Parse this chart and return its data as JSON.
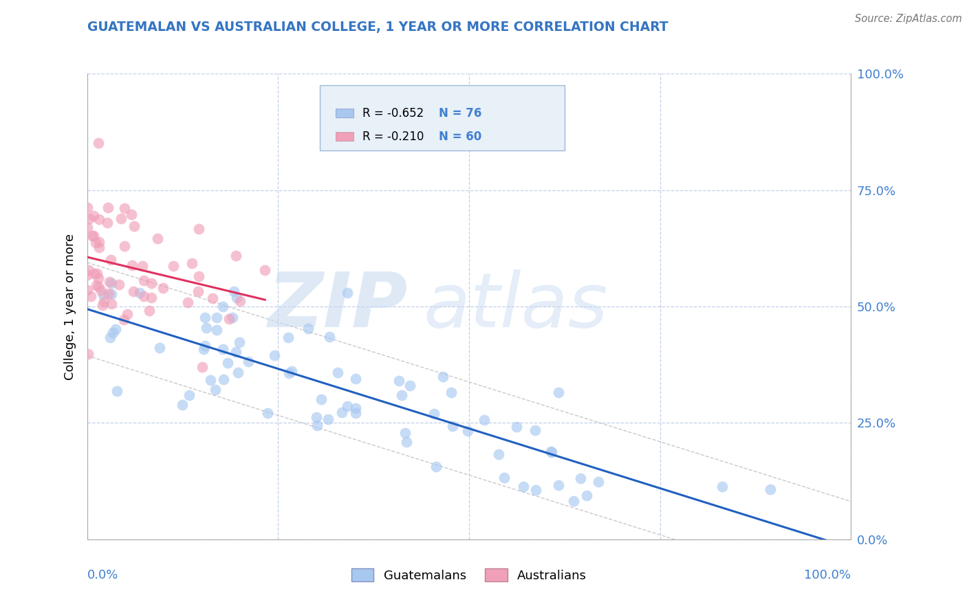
{
  "title": "GUATEMALAN VS AUSTRALIAN COLLEGE, 1 YEAR OR MORE CORRELATION CHART",
  "source": "Source: ZipAtlas.com",
  "ylabel": "College, 1 year or more",
  "watermark_zip": "ZIP",
  "watermark_atlas": "atlas",
  "legend_guatemalans": "Guatemalans",
  "legend_australians": "Australians",
  "r_guatemalan": "-0.652",
  "n_guatemalan": "76",
  "r_australian": "-0.210",
  "n_australian": "60",
  "blue_color": "#A8C8F0",
  "pink_color": "#F0A0B8",
  "blue_line_color": "#2060C0",
  "pink_line_color": "#E03060",
  "ci_color": "#BBBBBB",
  "grid_color": "#C0D0E8",
  "right_axis_color": "#4080D0",
  "background_color": "#FFFFFF",
  "legend_box_color": "#E8F0F8",
  "legend_border_color": "#A0B8D8"
}
